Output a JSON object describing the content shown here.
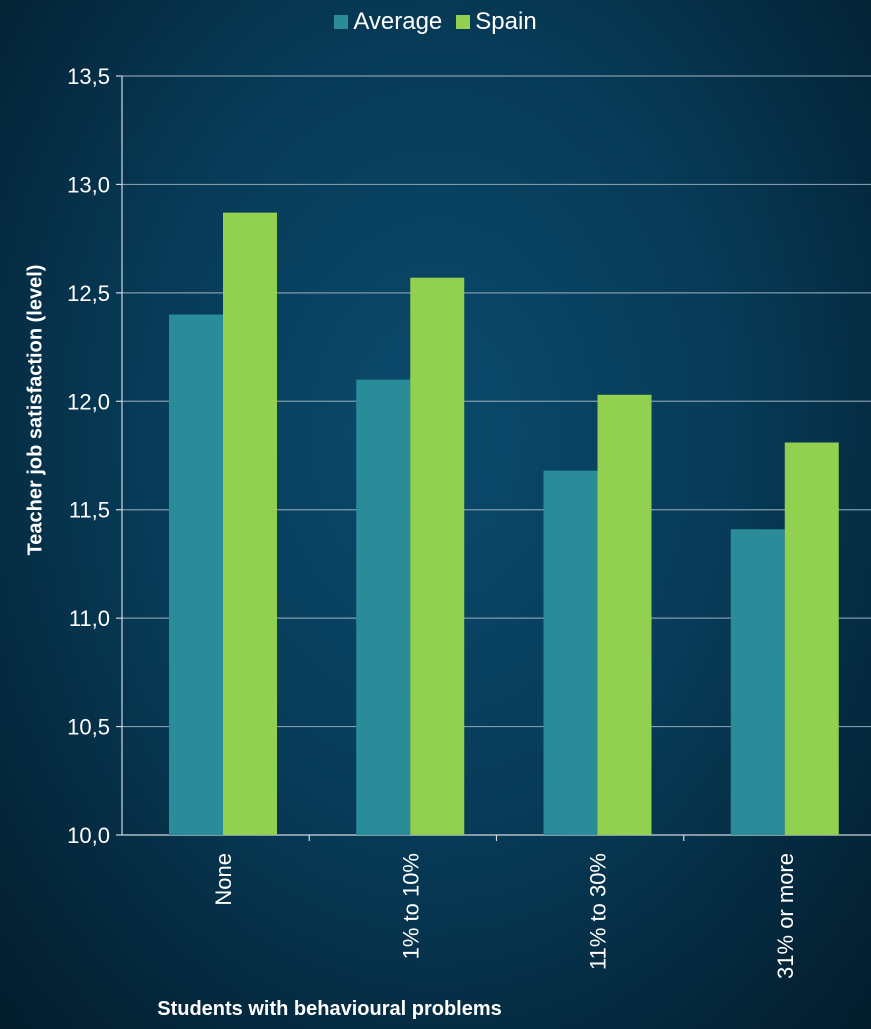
{
  "chart_data": {
    "type": "bar",
    "categories": [
      "None",
      "1% to 10%",
      "11% to 30%",
      "31% or more"
    ],
    "series": [
      {
        "name": "Average",
        "color": "#2a8c99",
        "values": [
          12.4,
          12.1,
          11.68,
          11.41
        ]
      },
      {
        "name": "Spain",
        "color": "#92d050",
        "values": [
          12.87,
          12.57,
          12.03,
          11.81
        ]
      }
    ],
    "xlabel": "Students with behavioural problems",
    "ylabel": "Teacher job satisfaction  (level)",
    "ylim": [
      10.0,
      13.5
    ],
    "yticks": [
      "10,0",
      "10,5",
      "11,0",
      "11,5",
      "12,0",
      "12,5",
      "13,0",
      "13,5"
    ],
    "grid": true,
    "legend_position": "top-center"
  },
  "colors": {
    "gridline": "#7f9bad",
    "axis": "#cfd8df"
  }
}
